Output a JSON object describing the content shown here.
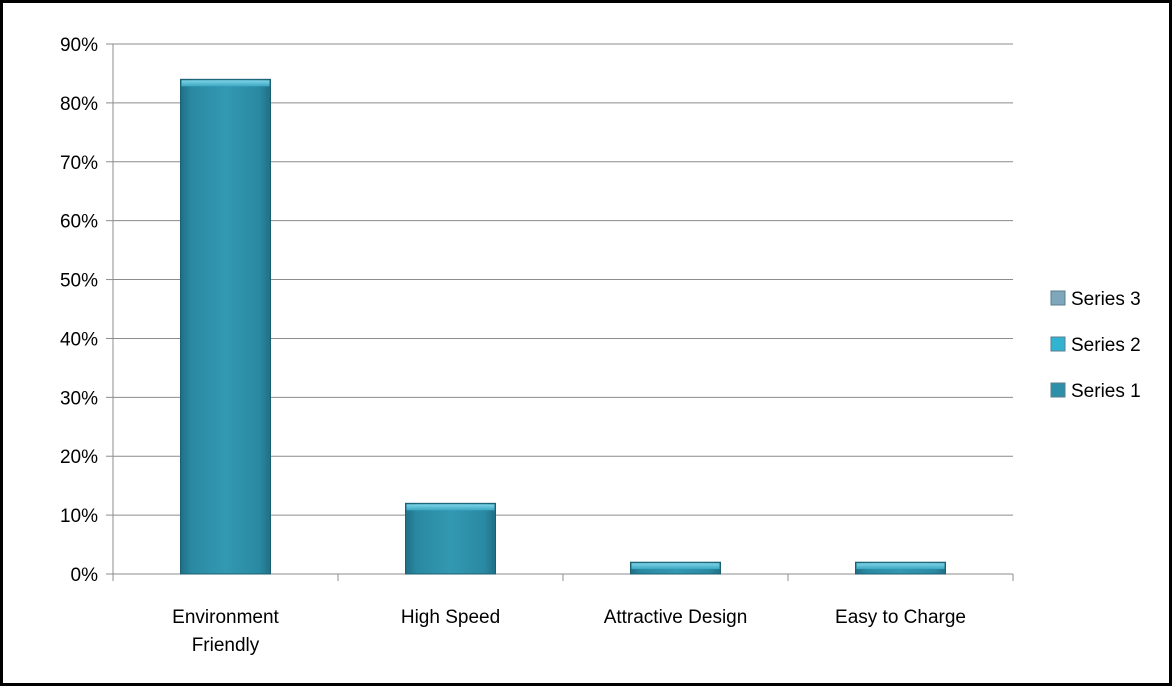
{
  "chart_data": {
    "type": "bar",
    "title": "",
    "xlabel": "",
    "ylabel": "",
    "categories": [
      [
        "Environment",
        "Friendly"
      ],
      [
        "High Speed"
      ],
      [
        "Attractive Design"
      ],
      [
        "Easy to Charge"
      ]
    ],
    "y_ticks": [
      "0%",
      "10%",
      "20%",
      "30%",
      "40%",
      "50%",
      "60%",
      "70%",
      "80%",
      "90%"
    ],
    "ylim": [
      0,
      90
    ],
    "y_unit": "%",
    "grid": true,
    "legend_position": "right",
    "legend": [
      "Series 3",
      "Series 2",
      "Series 1"
    ],
    "series": [
      {
        "name": "Series 1",
        "values": [
          84,
          12,
          2,
          2
        ],
        "color": "#2E8FA8"
      },
      {
        "name": "Series 2",
        "values": [
          0,
          0,
          0,
          0
        ],
        "color": "#31B3D1"
      },
      {
        "name": "Series 3",
        "values": [
          0,
          0,
          0,
          0
        ],
        "color": "#7FA7BC"
      }
    ]
  }
}
